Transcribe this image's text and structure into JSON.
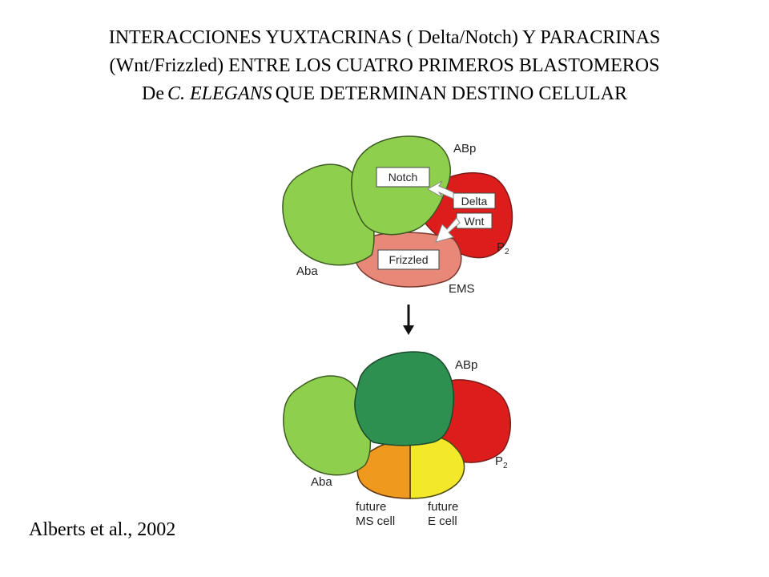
{
  "title": {
    "line1": "INTERACCIONES YUXTACRINAS (  Delta/Notch)  Y PARACRINAS",
    "line2": "(Wnt/Frizzled)  ENTRE LOS CUATRO PRIMEROS BLASTOMEROS",
    "line3_prefix": "De",
    "line3_species": "C. ELEGANS",
    "line3_suffix": "QUE DETERMINAN DESTINO CELULAR"
  },
  "citation": "Alberts et al., 2002",
  "top_panel": {
    "cells": {
      "abp": "ABp",
      "aba": "Aba",
      "p2_main": "P",
      "p2_sub": "2",
      "ems": "EMS"
    },
    "boxes": {
      "notch": "Notch",
      "delta": "Delta",
      "wnt": "Wnt",
      "frizzled": "Frizzled"
    }
  },
  "bottom_panel": {
    "cells": {
      "abp": "ABp",
      "aba": "Aba",
      "p2_main": "P",
      "p2_sub": "2",
      "future_ms": [
        "future",
        "MS cell"
      ],
      "future_e": [
        "future",
        "E cell"
      ]
    }
  },
  "colors": {
    "light_green": "#8fcf4e",
    "dark_green": "#2e9050",
    "red": "#dd1c1c",
    "salmon": "#e88878",
    "orange": "#ef9a1e",
    "yellow": "#f4e82a"
  }
}
